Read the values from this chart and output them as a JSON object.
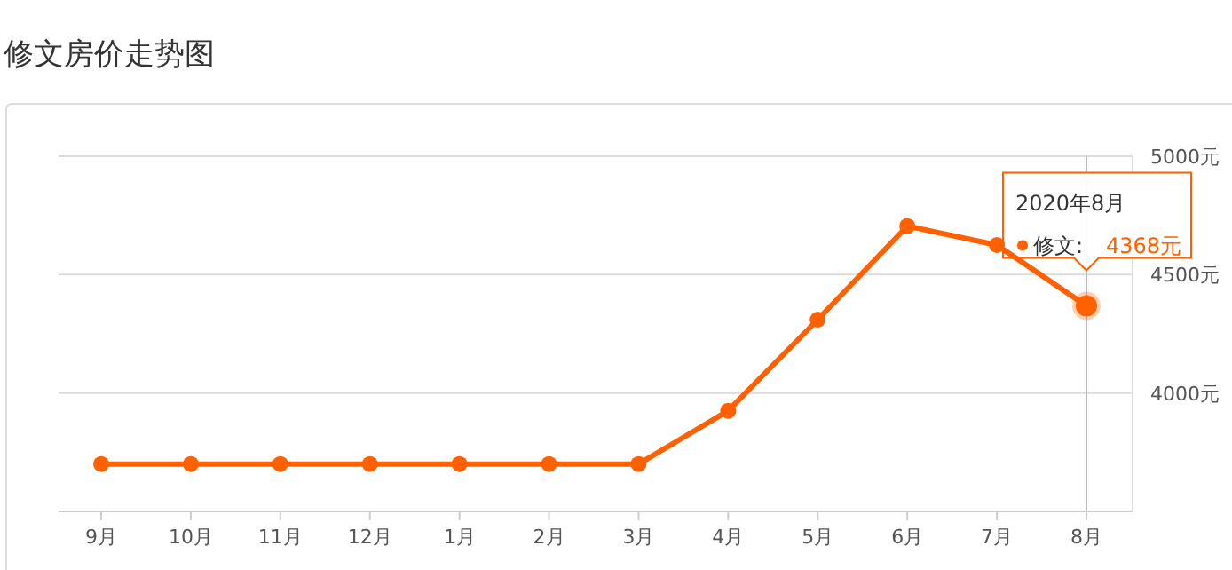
{
  "chart_data": {
    "type": "line",
    "title": "修文房价走势图",
    "categories": [
      "9月",
      "10月",
      "11月",
      "12月",
      "1月",
      "2月",
      "3月",
      "4月",
      "5月",
      "6月",
      "7月",
      "8月"
    ],
    "series": [
      {
        "color": "#ff6000",
        "values": [
          3700,
          3700,
          3700,
          3700,
          3700,
          3700,
          3700,
          3925,
          4310,
          4705,
          4625,
          4368
        ]
      }
    ],
    "ylim": [
      3500,
      5000
    ],
    "yticks": [
      {
        "value": 4000,
        "label": "4000元"
      },
      {
        "value": 4500,
        "label": "4500元"
      },
      {
        "value": 5000,
        "label": "5000元"
      }
    ],
    "grid": "y",
    "marker": "circle",
    "line_style": "solid",
    "ref_lines": [
      {
        "axis": "x",
        "value": "8月",
        "color": "#bbbbbb"
      }
    ],
    "annotations": [
      "2020年8月",
      "修文:",
      "4368元"
    ]
  }
}
